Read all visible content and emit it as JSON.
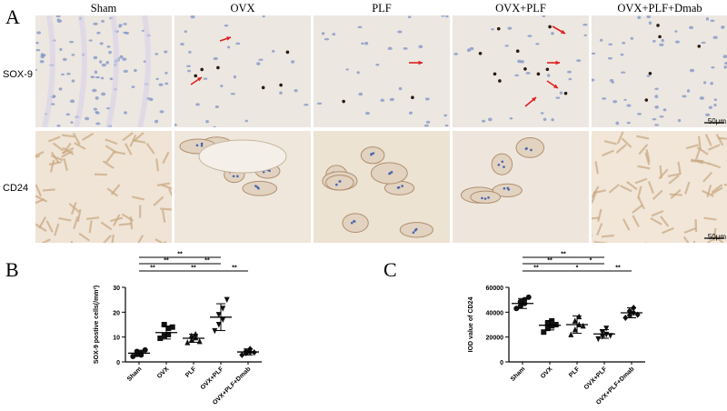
{
  "panel_a": {
    "letter": "A",
    "columns": [
      "Sham",
      "OVX",
      "PLF",
      "OVX+PLF",
      "OVX+PLF+Dmab"
    ],
    "rows": [
      "SOX-9",
      "CD24"
    ],
    "scale_bar": "50μm"
  },
  "chart_data": [
    {
      "panel": "B",
      "type": "scatter",
      "categories": [
        "Sham",
        "OVX",
        "PLF",
        "OVX+PLF",
        "OVX+PLF+Dmab"
      ],
      "ylabel": "SOX-9 postive cells(/mm²)",
      "ylim": [
        0,
        30
      ],
      "yticks": [
        0,
        10,
        20,
        30
      ],
      "markers": [
        "circle",
        "square",
        "triangle",
        "inverted-triangle",
        "diamond"
      ],
      "means": [
        3.5,
        11.8,
        9.5,
        18.0,
        4.0
      ],
      "sd": [
        1.2,
        2.6,
        1.6,
        5.4,
        1.2
      ],
      "points": [
        [
          2.2,
          3.0,
          3.5,
          4.2,
          2.8,
          4.8
        ],
        [
          9.5,
          10.5,
          13.5,
          15.0,
          11.0,
          14.0
        ],
        [
          7.8,
          8.8,
          9.8,
          10.5,
          11.2,
          8.3
        ],
        [
          12.5,
          15.0,
          17.0,
          19.0,
          21.5,
          25.0
        ],
        [
          2.8,
          3.5,
          4.0,
          4.3,
          5.2,
          3.8
        ]
      ],
      "significance": [
        {
          "from": 0,
          "to": 3,
          "label": "**"
        },
        {
          "from": 0,
          "to": 2,
          "label": "**"
        },
        {
          "from": 2,
          "to": 3,
          "label": "**"
        },
        {
          "from": 0,
          "to": 1,
          "label": "**"
        },
        {
          "from": 1,
          "to": 3,
          "label": "**"
        },
        {
          "from": 3,
          "to": 4,
          "label": "**"
        }
      ]
    },
    {
      "panel": "C",
      "type": "scatter",
      "categories": [
        "Sham",
        "OVX",
        "PLF",
        "OVX+PLF",
        "OVX+PLF+Dmab"
      ],
      "ylabel": "IOD value of CD24",
      "ylim": [
        0,
        60000
      ],
      "yticks": [
        0,
        20000,
        40000,
        60000
      ],
      "markers": [
        "circle",
        "square",
        "triangle",
        "inverted-triangle",
        "diamond"
      ],
      "means": [
        47000,
        29500,
        30000,
        22500,
        39500
      ],
      "sd": [
        4000,
        3800,
        7000,
        3500,
        4000
      ],
      "points": [
        [
          43000,
          45000,
          47000,
          48500,
          50000,
          52000
        ],
        [
          24000,
          27000,
          29000,
          31000,
          33000,
          30000
        ],
        [
          22000,
          26000,
          30000,
          33000,
          36500,
          29000
        ],
        [
          18500,
          20500,
          22000,
          24000,
          27000,
          21000
        ],
        [
          35500,
          37500,
          39500,
          41000,
          43500,
          38000
        ]
      ],
      "significance": [
        {
          "from": 0,
          "to": 3,
          "label": "**"
        },
        {
          "from": 0,
          "to": 2,
          "label": "**"
        },
        {
          "from": 2,
          "to": 3,
          "label": "*"
        },
        {
          "from": 0,
          "to": 1,
          "label": "**"
        },
        {
          "from": 1,
          "to": 3,
          "label": "*"
        },
        {
          "from": 3,
          "to": 4,
          "label": "**"
        }
      ]
    }
  ]
}
